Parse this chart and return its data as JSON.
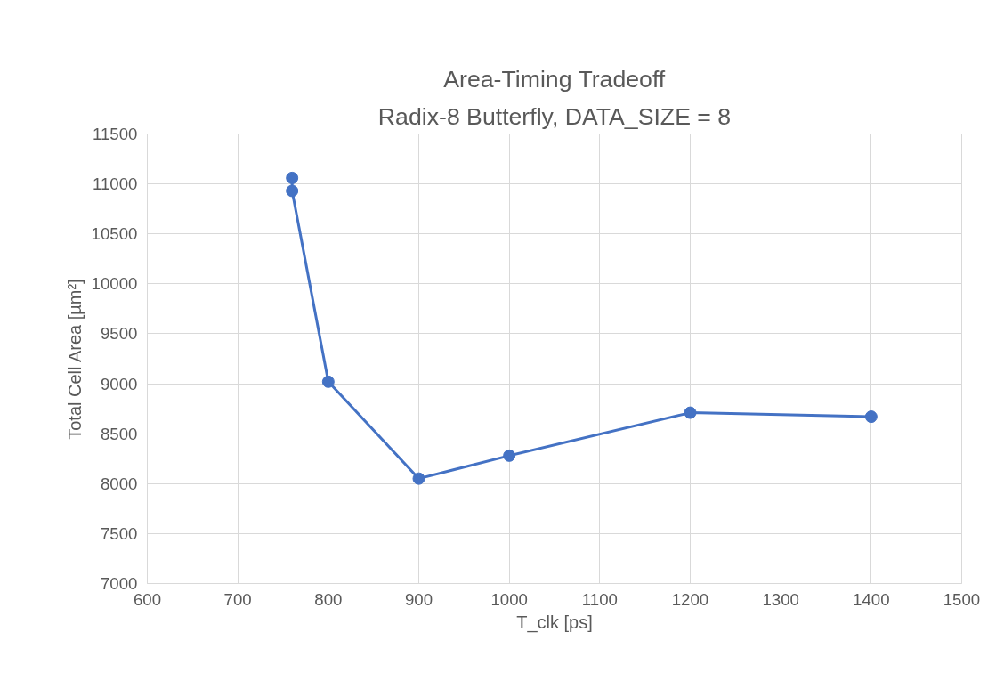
{
  "chart_data": {
    "type": "line",
    "title": "Area-Timing Tradeoff",
    "subtitle": "Radix-8 Butterfly, DATA_SIZE = 8",
    "xlabel": "T_clk [ps]",
    "ylabel": "Total Cell Area [µm²]",
    "x": [
      760,
      760,
      800,
      900,
      1000,
      1200,
      1400
    ],
    "series": [
      {
        "color": "#4472c4",
        "values": [
          11060,
          10930,
          9020,
          8050,
          8280,
          8710,
          8670
        ]
      }
    ],
    "xlim": [
      600,
      1500
    ],
    "xticks": [
      600,
      700,
      800,
      900,
      1000,
      1100,
      1200,
      1300,
      1400,
      1500
    ],
    "ylim": [
      7000,
      11500
    ],
    "yticks": [
      7000,
      7500,
      8000,
      8500,
      9000,
      9500,
      10000,
      10500,
      11000,
      11500
    ],
    "grid": true,
    "marker": "circle",
    "line_style": "solid"
  }
}
